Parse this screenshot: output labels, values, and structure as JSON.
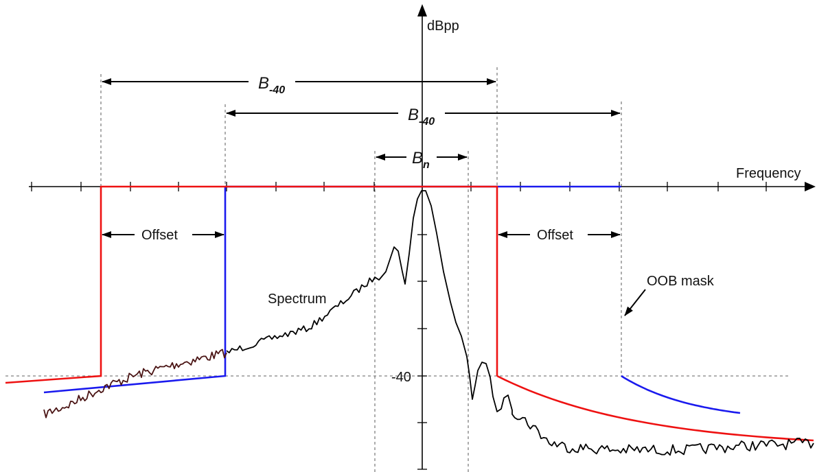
{
  "diagram": {
    "y_axis_label": "dBpp",
    "x_axis_label": "Frequency",
    "level_label": "-40",
    "bandwidth_labels": [
      {
        "main": "B",
        "sub": "-40"
      },
      {
        "main": "B",
        "sub": "-40"
      },
      {
        "main": "B",
        "sub": "n"
      }
    ],
    "offset_label": "Offset",
    "spectrum_label": "Spectrum",
    "oob_mask_label": "OOB mask",
    "colors": {
      "axis": "#000000",
      "red_mask": "#ee1111",
      "blue_mask": "#1a1aee",
      "spectrum": "#000000",
      "spectrum_left": "#4a1414",
      "guide": "#808080"
    }
  }
}
